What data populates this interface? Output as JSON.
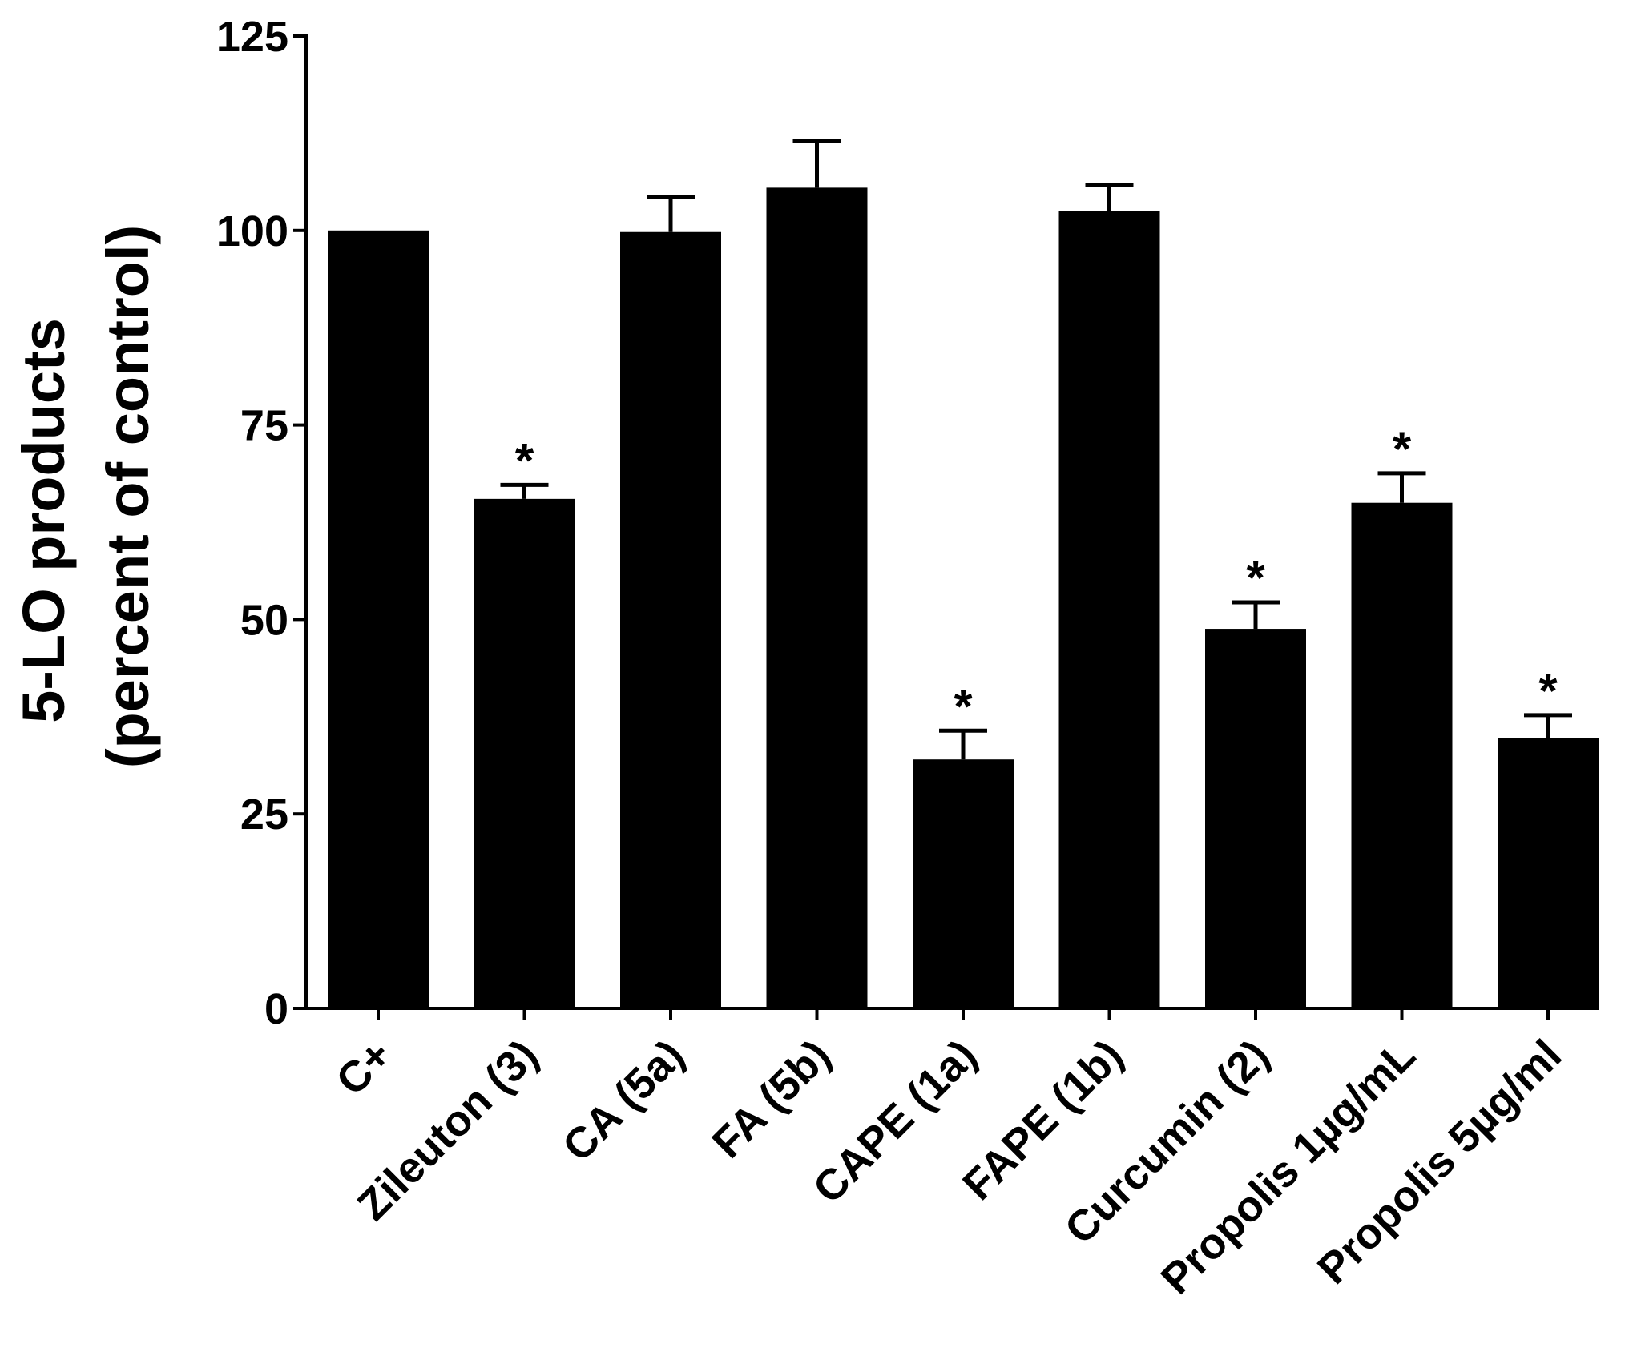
{
  "chart_data": {
    "type": "bar",
    "title": "",
    "xlabel": "",
    "ylabel": {
      "line1": "5-LO products",
      "line2": "(percent of control)"
    },
    "ylim": [
      0,
      125
    ],
    "yticks": [
      0,
      25,
      50,
      75,
      100,
      125
    ],
    "ytick_labels": [
      "0",
      "25",
      "50",
      "75",
      "100",
      "125"
    ],
    "grid": false,
    "legend": "none",
    "bar_color": "#000000",
    "categories": [
      "C+",
      "Zileuton (3)",
      "CA (5a)",
      "FA (5b)",
      "CAPE (1a)",
      "FAPE (1b)",
      "Curcumin (2)",
      "Propolis 1µg/mL",
      "Propolis 5µg/ml"
    ],
    "values": [
      100,
      65.5,
      99.8,
      105.5,
      32,
      102.5,
      48.8,
      65,
      34.8
    ],
    "error_upper": [
      0,
      1.8,
      4.5,
      6,
      3.7,
      3.3,
      3.4,
      3.8,
      2.9
    ],
    "significance": [
      "",
      "*",
      "",
      "",
      "*",
      "",
      "*",
      "*",
      "*"
    ]
  }
}
